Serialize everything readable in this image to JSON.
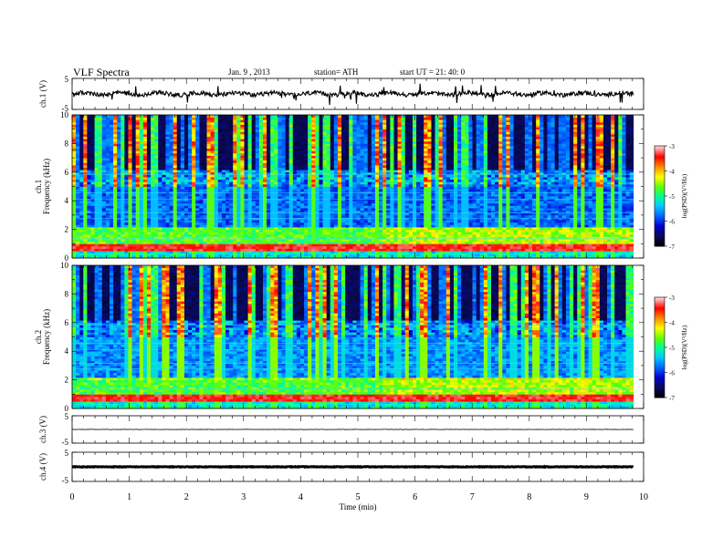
{
  "header": {
    "title": "VLF  Spectra",
    "date": "Jan. 9  , 2013",
    "station": "station= ATH",
    "start": "start  UT  =   21: 40: 0"
  },
  "chart_data": {
    "type": "heatmap",
    "xlabel": "Time  (min)",
    "xlim": [
      0,
      10
    ],
    "xticks": [
      "0",
      "1",
      "2",
      "3",
      "4",
      "5",
      "6",
      "7",
      "8",
      "9",
      "10"
    ],
    "data_end_min": 9.82,
    "colorscale": {
      "colors": [
        "#000000",
        "#0a0a5c",
        "#0000d0",
        "#0064ff",
        "#00c8ff",
        "#00ff96",
        "#64ff00",
        "#ffff00",
        "#ff8c00",
        "#ff0000",
        "#ffc8c8"
      ],
      "range": [
        -7,
        -3
      ],
      "ticks": [
        "-3",
        "-4",
        "-5",
        "-6",
        "-7"
      ],
      "label": "log(PSD) (V²/Hz)"
    },
    "panels": [
      {
        "id": "ch1v",
        "kind": "waveform",
        "ylabel": "ch.1 (V)",
        "ylim": [
          -5,
          5
        ],
        "yticks": [
          "5",
          "-5"
        ],
        "baseline": 0,
        "style": "noisy"
      },
      {
        "id": "ch1spec",
        "kind": "spectrogram",
        "ylabel": "ch.1\nFrequency  (kHz)",
        "ylim": [
          0,
          10
        ],
        "yticks": [
          "0",
          "2",
          "4",
          "6",
          "8",
          "10"
        ],
        "cbticks": [
          "-3",
          "-4",
          "-5",
          "-6",
          "-7"
        ],
        "cblabel": "log(PSD)(V²/Hz)"
      },
      {
        "id": "ch2spec",
        "kind": "spectrogram",
        "ylabel": "ch.2\nFrequency  (kHz)",
        "ylim": [
          0,
          10
        ],
        "yticks": [
          "0",
          "2",
          "4",
          "6",
          "8",
          "10"
        ],
        "cbticks": [
          "-3",
          "-4",
          "-5",
          "-6",
          "-7"
        ],
        "cblabel": "log(PSD)(V²/Hz)"
      },
      {
        "id": "ch3v",
        "kind": "waveform",
        "ylabel": "ch.3 (V)",
        "ylim": [
          -5,
          5
        ],
        "yticks": [
          "5",
          "-5"
        ],
        "baseline": 0,
        "style": "flat"
      },
      {
        "id": "ch4v",
        "kind": "waveform",
        "ylabel": "ch.4 (V)",
        "ylim": [
          -5,
          5
        ],
        "yticks": [
          "5",
          "-5"
        ],
        "baseline": 0,
        "style": "thick"
      }
    ]
  }
}
